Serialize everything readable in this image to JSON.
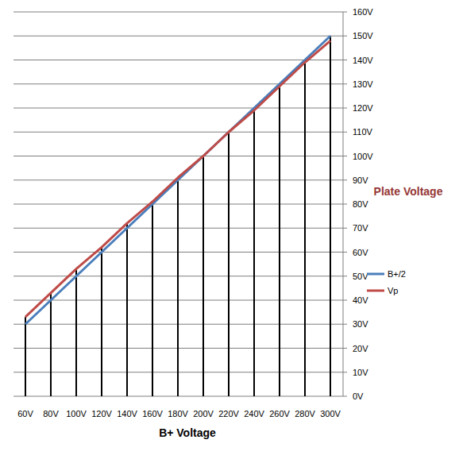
{
  "chart_data": {
    "type": "line",
    "x_label": "B+ Voltage",
    "y_label": "Plate Voltage",
    "categories": [
      "60V",
      "80V",
      "100V",
      "120V",
      "140V",
      "160V",
      "180V",
      "200V",
      "220V",
      "240V",
      "260V",
      "280V",
      "300V"
    ],
    "series": [
      {
        "name": "B+/2",
        "color": "#4a7ebb",
        "values": [
          30,
          40,
          50,
          60,
          70,
          80,
          90,
          100,
          110,
          120,
          130,
          140,
          150
        ]
      },
      {
        "name": "Vp",
        "color": "#be4b48",
        "values": [
          33,
          43,
          53,
          62,
          72,
          81,
          91,
          100,
          110,
          119,
          129,
          139,
          148
        ]
      }
    ],
    "ylim": [
      0,
      160
    ],
    "yticks": [
      {
        "value": 0,
        "label": "0V"
      },
      {
        "value": 10,
        "label": "10V"
      },
      {
        "value": 20,
        "label": "20V"
      },
      {
        "value": 30,
        "label": "30V"
      },
      {
        "value": 40,
        "label": "40V"
      },
      {
        "value": 50,
        "label": "50V"
      },
      {
        "value": 60,
        "label": "60V"
      },
      {
        "value": 70,
        "label": "70V"
      },
      {
        "value": 80,
        "label": "80V"
      },
      {
        "value": 90,
        "label": "90V"
      },
      {
        "value": 100,
        "label": "100V"
      },
      {
        "value": 110,
        "label": "110V"
      },
      {
        "value": 120,
        "label": "120V"
      },
      {
        "value": 130,
        "label": "130V"
      },
      {
        "value": 140,
        "label": "140V"
      },
      {
        "value": 150,
        "label": "150V"
      },
      {
        "value": 160,
        "label": "160V"
      }
    ],
    "grid": true,
    "legend": "right"
  }
}
